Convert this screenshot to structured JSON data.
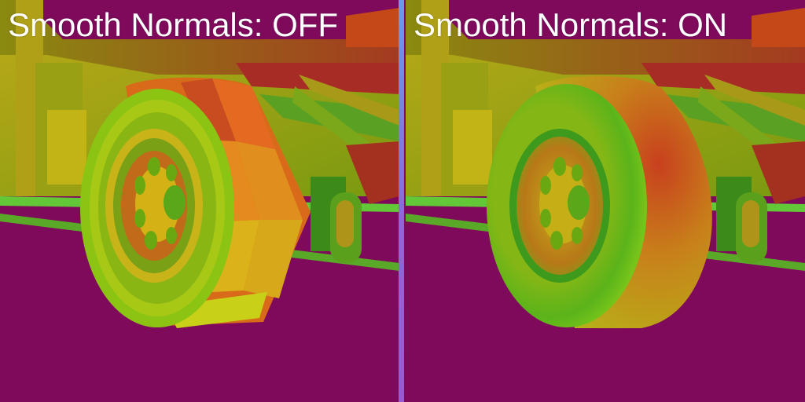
{
  "panels": [
    {
      "label": "Smooth Normals: OFF",
      "smooth_normals": false
    },
    {
      "label": "Smooth Normals: ON",
      "smooth_normals": true
    }
  ],
  "colors": {
    "background": "#7f0a5c",
    "divider": "#7a8ae0",
    "label_text": "#ffffff"
  }
}
